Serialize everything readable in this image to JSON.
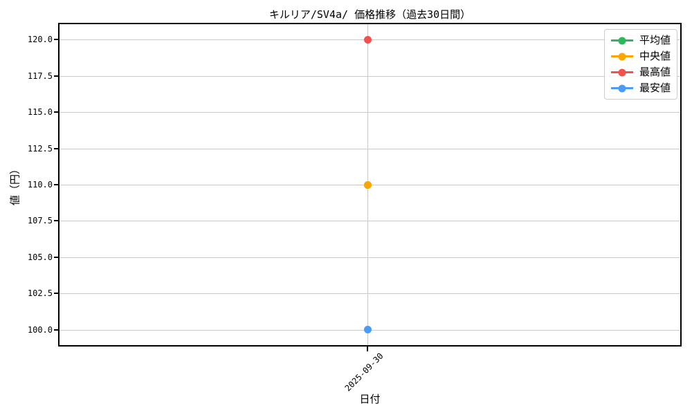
{
  "chart_data": {
    "type": "line",
    "title": "キルリア/SV4a/ 価格推移（過去30日間）",
    "xlabel": "日付",
    "ylabel": "値（円）",
    "x": [
      "2025-09-30"
    ],
    "series": [
      {
        "key": "mean",
        "name": "平均値",
        "color": "#2eb85c",
        "values": [
          110.0
        ]
      },
      {
        "key": "median",
        "name": "中央値",
        "color": "#ffa502",
        "values": [
          110.0
        ]
      },
      {
        "key": "max",
        "name": "最高値",
        "color": "#f4514e",
        "values": [
          120.0
        ]
      },
      {
        "key": "min",
        "name": "最安値",
        "color": "#4a9af7",
        "values": [
          100.0
        ]
      }
    ],
    "yticks": [
      120.0,
      117.5,
      115.0,
      112.5,
      110.0,
      107.5,
      105.0,
      102.5,
      100.0
    ],
    "ylim": [
      98.95,
      121.05
    ],
    "grid": true,
    "grid_color": "#c9c9c9",
    "legend_position": "upper right",
    "background": "#ffffff"
  }
}
